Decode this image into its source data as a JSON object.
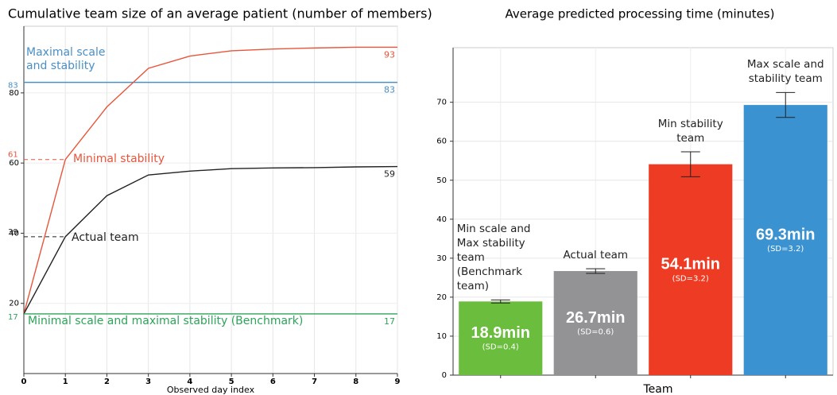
{
  "chart_data": [
    {
      "type": "line",
      "title": "Cumulative team size of an average patient (number of members)",
      "xlabel": "Observed day index",
      "x": [
        0,
        1,
        2,
        3,
        4,
        5,
        6,
        7,
        8,
        9
      ],
      "xlim": [
        0,
        9
      ],
      "xticks": [
        0,
        1,
        2,
        3,
        4,
        5,
        6,
        7,
        8,
        9
      ],
      "ylim": [
        0,
        99
      ],
      "yticks": [
        20,
        40,
        60,
        80
      ],
      "grid": true,
      "series": [
        {
          "name": "Maximal scale and stability",
          "color": "#4a8fc6",
          "values": [
            83,
            83,
            83,
            83,
            83,
            83,
            83,
            83,
            83,
            83
          ],
          "value_labels": [
            "83",
            null,
            null,
            null,
            null,
            null,
            null,
            null,
            null,
            "83"
          ]
        },
        {
          "name": "Minimal stability",
          "color": "#e8553a",
          "values": [
            17,
            61,
            76,
            87,
            90.5,
            92,
            92.5,
            92.8,
            93,
            93
          ],
          "value_labels": [
            null,
            "61",
            null,
            null,
            null,
            null,
            null,
            null,
            null,
            "93"
          ]
        },
        {
          "name": "Actual team",
          "color": "#222222",
          "values": [
            17,
            39,
            50.7,
            56.6,
            57.7,
            58.4,
            58.6,
            58.7,
            58.9,
            59
          ],
          "value_labels": [
            null,
            "39",
            null,
            null,
            null,
            null,
            null,
            null,
            null,
            "59"
          ]
        },
        {
          "name": "Minimal scale and maximal stability (Benchmark)",
          "color": "#2ea35a",
          "values": [
            17,
            17,
            17,
            17,
            17,
            17,
            17,
            17,
            17,
            17
          ],
          "value_labels": [
            "17",
            null,
            null,
            null,
            null,
            null,
            null,
            null,
            null,
            "17"
          ]
        }
      ]
    },
    {
      "type": "bar",
      "title": "Average predicted processing time (minutes)",
      "xlabel": "Team",
      "categories": [
        "Min scale and Max stability team (Benchmark team)",
        "Actual team",
        "Min stability team",
        "Max scale and stability team"
      ],
      "values": [
        18.9,
        26.7,
        54.1,
        69.3
      ],
      "value_labels": [
        "18.9min",
        "26.7min",
        "54.1min",
        "69.3min"
      ],
      "errors": [
        0.4,
        0.6,
        3.2,
        3.2
      ],
      "error_labels": [
        "(SD=0.4)",
        "(SD=0.6)",
        "(SD=3.2)",
        "(SD=3.2)"
      ],
      "colors": [
        "#6bbd3e",
        "#939396",
        "#ee3b24",
        "#3a92d1"
      ],
      "ylim": [
        0,
        84
      ],
      "yticks": [
        0,
        10,
        20,
        30,
        40,
        50,
        60,
        70
      ],
      "grid": true
    }
  ]
}
